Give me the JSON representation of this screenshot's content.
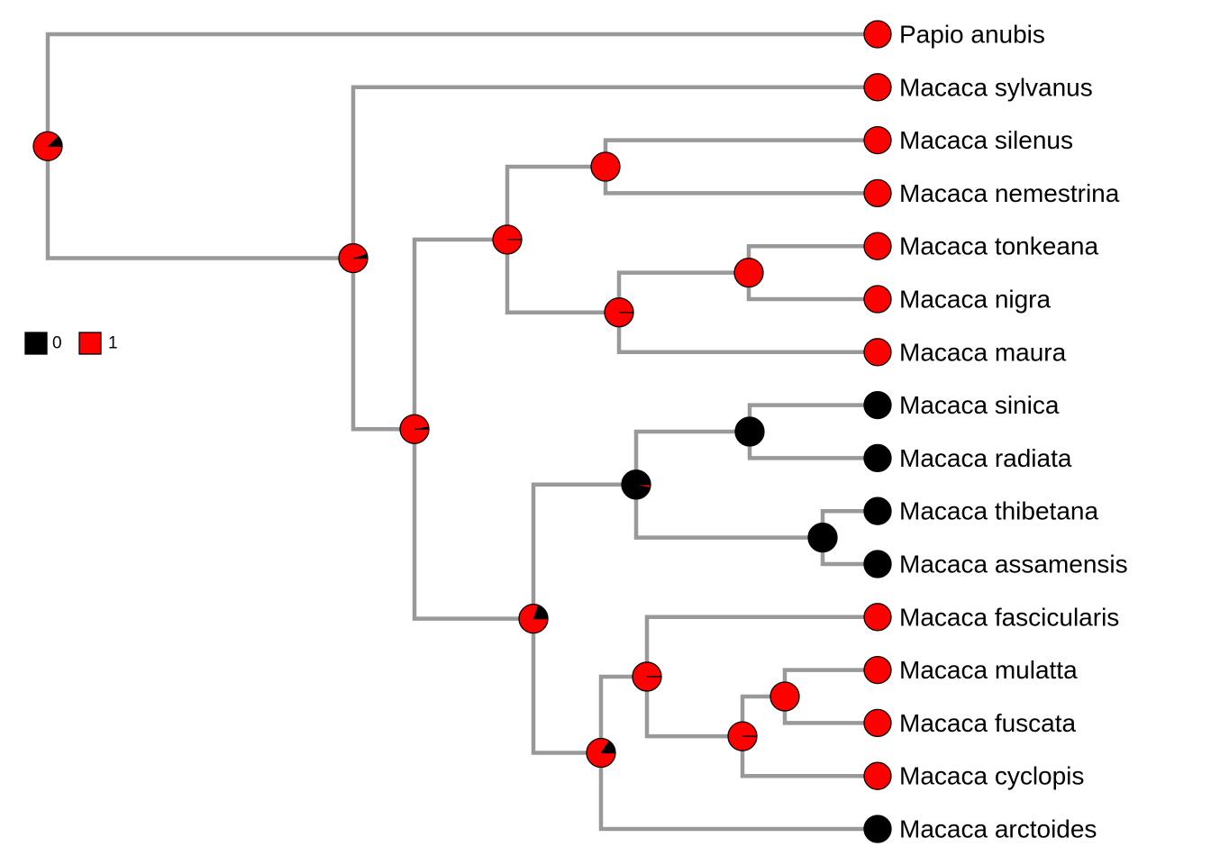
{
  "legend": [
    {
      "label": "0",
      "color": "#000000"
    },
    {
      "label": "1",
      "color": "#ff0000"
    }
  ],
  "state_colors": {
    "0": "#000000",
    "1": "#ff0000"
  },
  "tips": [
    {
      "name": "Papio anubis",
      "state": "1"
    },
    {
      "name": "Macaca sylvanus",
      "state": "1"
    },
    {
      "name": "Macaca silenus",
      "state": "1"
    },
    {
      "name": "Macaca nemestrina",
      "state": "1"
    },
    {
      "name": "Macaca tonkeana",
      "state": "1"
    },
    {
      "name": "Macaca nigra",
      "state": "1"
    },
    {
      "name": "Macaca maura",
      "state": "1"
    },
    {
      "name": "Macaca sinica",
      "state": "0"
    },
    {
      "name": "Macaca radiata",
      "state": "0"
    },
    {
      "name": "Macaca thibetana",
      "state": "0"
    },
    {
      "name": "Macaca assamensis",
      "state": "0"
    },
    {
      "name": "Macaca fascicularis",
      "state": "1"
    },
    {
      "name": "Macaca mulatta",
      "state": "1"
    },
    {
      "name": "Macaca fuscata",
      "state": "1"
    },
    {
      "name": "Macaca cyclopis",
      "state": "1"
    },
    {
      "name": "Macaca arctoides",
      "state": "0"
    }
  ],
  "nodes": [
    {
      "id": "root",
      "children": [
        "Papio anubis",
        "n_macaca"
      ],
      "p0": 0.12
    },
    {
      "id": "n_macaca",
      "children": [
        "Macaca sylvanus",
        "n_b"
      ],
      "p0": 0.05
    },
    {
      "id": "n_b",
      "children": [
        "n_c",
        "n_h"
      ],
      "p0": 0.03
    },
    {
      "id": "n_c",
      "children": [
        "n_d",
        "n_e"
      ],
      "p0": 0.01
    },
    {
      "id": "n_d",
      "children": [
        "Macaca silenus",
        "Macaca nemestrina"
      ],
      "p0": 0.0
    },
    {
      "id": "n_e",
      "children": [
        "n_f",
        "Macaca maura"
      ],
      "p0": 0.01
    },
    {
      "id": "n_f",
      "children": [
        "Macaca tonkeana",
        "Macaca nigra"
      ],
      "p0": 0.0
    },
    {
      "id": "n_h",
      "children": [
        "n_i",
        "n_l"
      ],
      "p0": 0.2
    },
    {
      "id": "n_i",
      "children": [
        "n_j",
        "n_k"
      ],
      "p0": 0.97
    },
    {
      "id": "n_j",
      "children": [
        "Macaca sinica",
        "Macaca radiata"
      ],
      "p0": 1.0
    },
    {
      "id": "n_k",
      "children": [
        "Macaca thibetana",
        "Macaca assamensis"
      ],
      "p0": 1.0
    },
    {
      "id": "n_l",
      "children": [
        "n_m",
        "Macaca arctoides"
      ],
      "p0": 0.16
    },
    {
      "id": "n_m",
      "children": [
        "Macaca fascicularis",
        "n_n"
      ],
      "p0": 0.01
    },
    {
      "id": "n_n",
      "children": [
        "n_o",
        "Macaca cyclopis"
      ],
      "p0": 0.01
    },
    {
      "id": "n_o",
      "children": [
        "Macaca mulatta",
        "Macaca fuscata"
      ],
      "p0": 0.0
    }
  ]
}
